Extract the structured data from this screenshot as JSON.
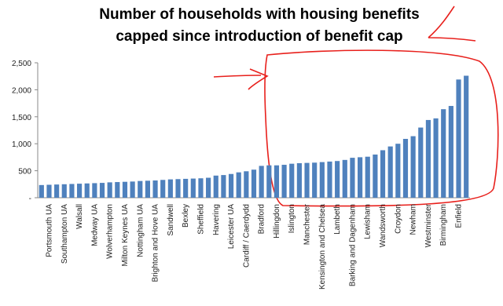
{
  "chart_data": {
    "type": "bar",
    "title": [
      "Number of households with housing benefits",
      "capped since introduction of benefit cap"
    ],
    "categories": [
      null,
      "Portsmouth UA",
      null,
      "Southampton UA",
      null,
      "Walsall",
      null,
      "Medway UA",
      null,
      "Wolverhampton",
      null,
      "Milton Keynes UA",
      null,
      "Nottingham UA",
      null,
      "Brighton and Hove UA",
      null,
      "Sandwell",
      null,
      "Bexley",
      null,
      "Sheffield",
      null,
      "Havering",
      null,
      "Leicester UA",
      null,
      "Cardiff / Caerdydd",
      null,
      "Bradford",
      null,
      "Hillingdon",
      null,
      "Islington",
      null,
      "Manchester",
      null,
      "Kensington and Chelsea",
      null,
      "Lambeth",
      null,
      "Barking and Dagenham",
      null,
      "Lewisham",
      null,
      "Wandsworth",
      null,
      "Croydon",
      null,
      "Newham",
      null,
      "Westminster",
      null,
      "Birmingham",
      null,
      "Enfield",
      null
    ],
    "values": [
      235,
      240,
      245,
      250,
      255,
      260,
      265,
      270,
      275,
      285,
      290,
      295,
      300,
      310,
      315,
      320,
      330,
      340,
      345,
      350,
      355,
      360,
      370,
      410,
      420,
      440,
      470,
      490,
      520,
      590,
      600,
      600,
      610,
      630,
      640,
      645,
      650,
      660,
      670,
      680,
      700,
      740,
      750,
      760,
      800,
      880,
      950,
      1000,
      1090,
      1140,
      1300,
      1440,
      1470,
      1640,
      1700,
      2190,
      2260
    ],
    "color": "#4f81bd",
    "ylim": [
      0,
      2500
    ],
    "yticks": [
      {
        "value": 0,
        "label": "-"
      },
      500,
      {
        "value": 1000,
        "label": "1,000"
      },
      {
        "value": 1500,
        "label": "1,500"
      },
      {
        "value": 2000,
        "label": "2,000"
      },
      {
        "value": 2500,
        "label": "2,500"
      }
    ],
    "grid": false
  }
}
